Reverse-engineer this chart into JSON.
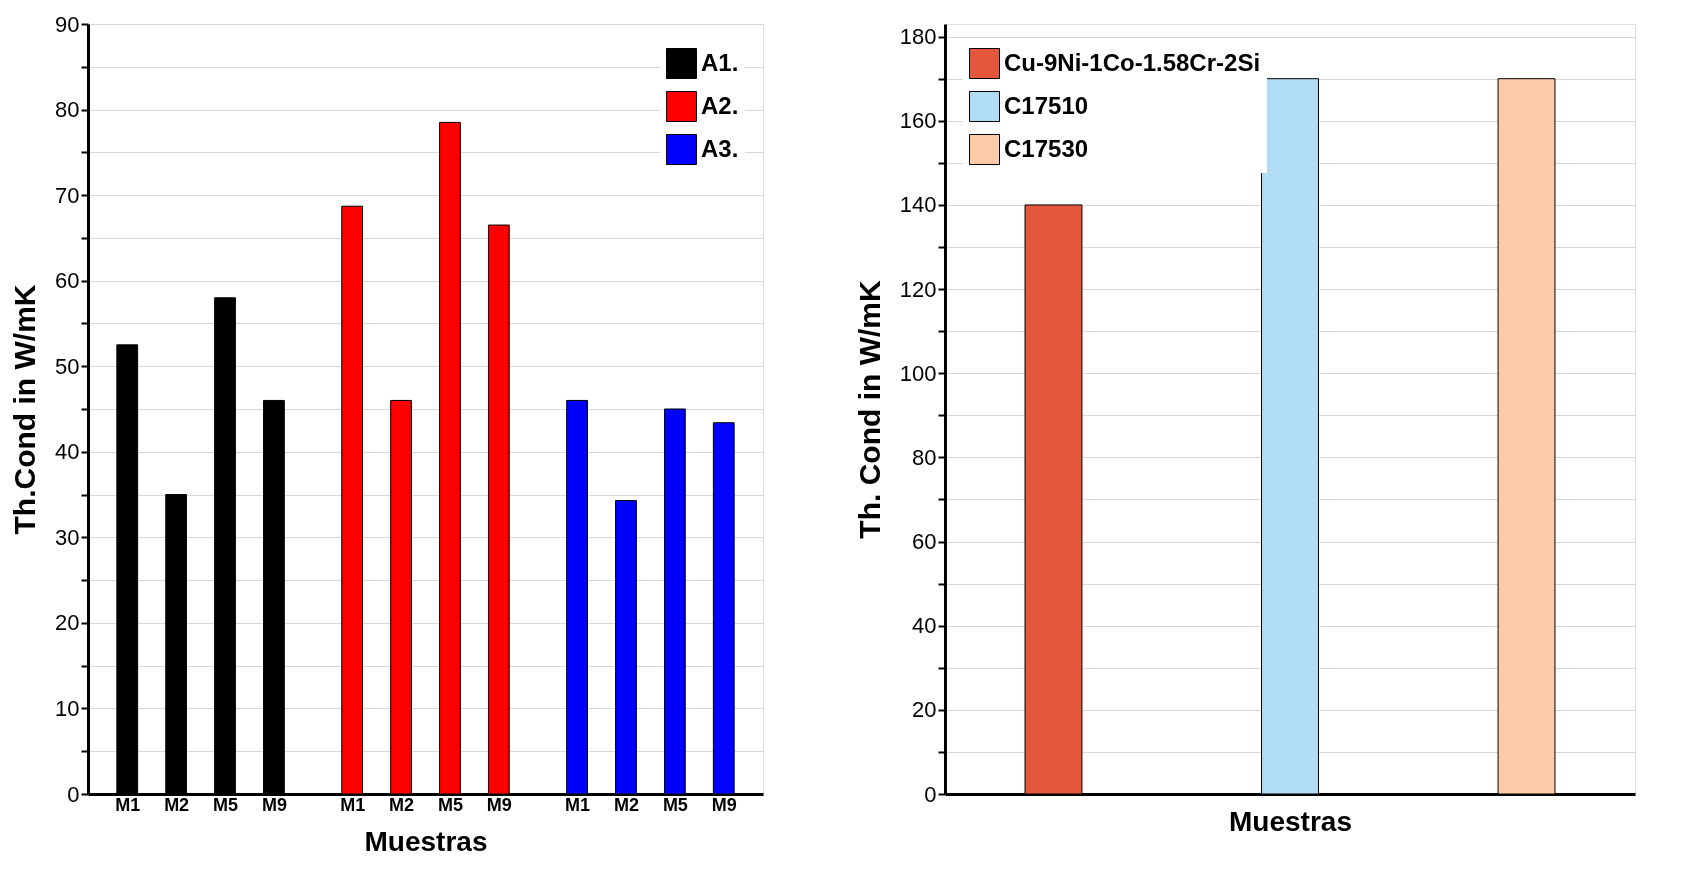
{
  "chart_data": [
    {
      "type": "bar",
      "xlabel": "Muestras",
      "ylabel": "Th.Cond in W/mK",
      "categories": [
        "M1",
        "M2",
        "M5",
        "M9",
        "M1",
        "M2",
        "M5",
        "M9",
        "M1",
        "M2",
        "M5",
        "M9"
      ],
      "series": [
        {
          "name": "A1.",
          "color": "#000000",
          "values": [
            52.5,
            35,
            58,
            46,
            null,
            null,
            null,
            null,
            null,
            null,
            null,
            null
          ]
        },
        {
          "name": "A2.",
          "color": "#ff0000",
          "values": [
            null,
            null,
            null,
            null,
            68.7,
            46,
            78.5,
            66.5,
            null,
            null,
            null,
            null
          ]
        },
        {
          "name": "A3.",
          "color": "#0000ff",
          "values": [
            null,
            null,
            null,
            null,
            null,
            null,
            null,
            null,
            46,
            34.3,
            45,
            43.4
          ]
        }
      ],
      "ylim": [
        0,
        90
      ],
      "yticks": [
        0,
        {
          "value": 5,
          "label": null
        },
        10,
        {
          "value": 15,
          "label": null
        },
        20,
        {
          "value": 25,
          "label": null
        },
        30,
        {
          "value": 35,
          "label": null
        },
        40,
        {
          "value": 45,
          "label": null
        },
        50,
        {
          "value": 55,
          "label": null
        },
        60,
        {
          "value": 65,
          "label": null
        },
        70,
        {
          "value": 75,
          "label": null
        },
        80,
        {
          "value": 85,
          "label": null
        },
        90
      ],
      "grid": "y",
      "legend": "top right"
    },
    {
      "type": "bar",
      "xlabel": "Muestras",
      "ylabel": "Th. Cond in W/mK",
      "categories": [
        null,
        null,
        null
      ],
      "series": [
        {
          "name": "Cu-9Ni-1Co-1.58Cr-2Si",
          "color": "#e5573d",
          "values": [
            140,
            null,
            null
          ]
        },
        {
          "name": "C17510",
          "color": "#b0dcf4",
          "values": [
            null,
            170,
            null
          ]
        },
        {
          "name": "C17530",
          "color": "#fdcba8",
          "values": [
            null,
            null,
            170
          ]
        }
      ],
      "ylim": [
        0,
        183
      ],
      "yticks": [
        0,
        {
          "value": 10,
          "label": null
        },
        20,
        {
          "value": 30,
          "label": null
        },
        40,
        {
          "value": 50,
          "label": null
        },
        60,
        {
          "value": 70,
          "label": null
        },
        80,
        {
          "value": 90,
          "label": null
        },
        100,
        {
          "value": 110,
          "label": null
        },
        120,
        {
          "value": 130,
          "label": null
        },
        140,
        {
          "value": 150,
          "label": null
        },
        160,
        {
          "value": 170,
          "label": null
        },
        180
      ],
      "grid": "y",
      "legend": "top left",
      "tick_labels": "y"
    }
  ]
}
